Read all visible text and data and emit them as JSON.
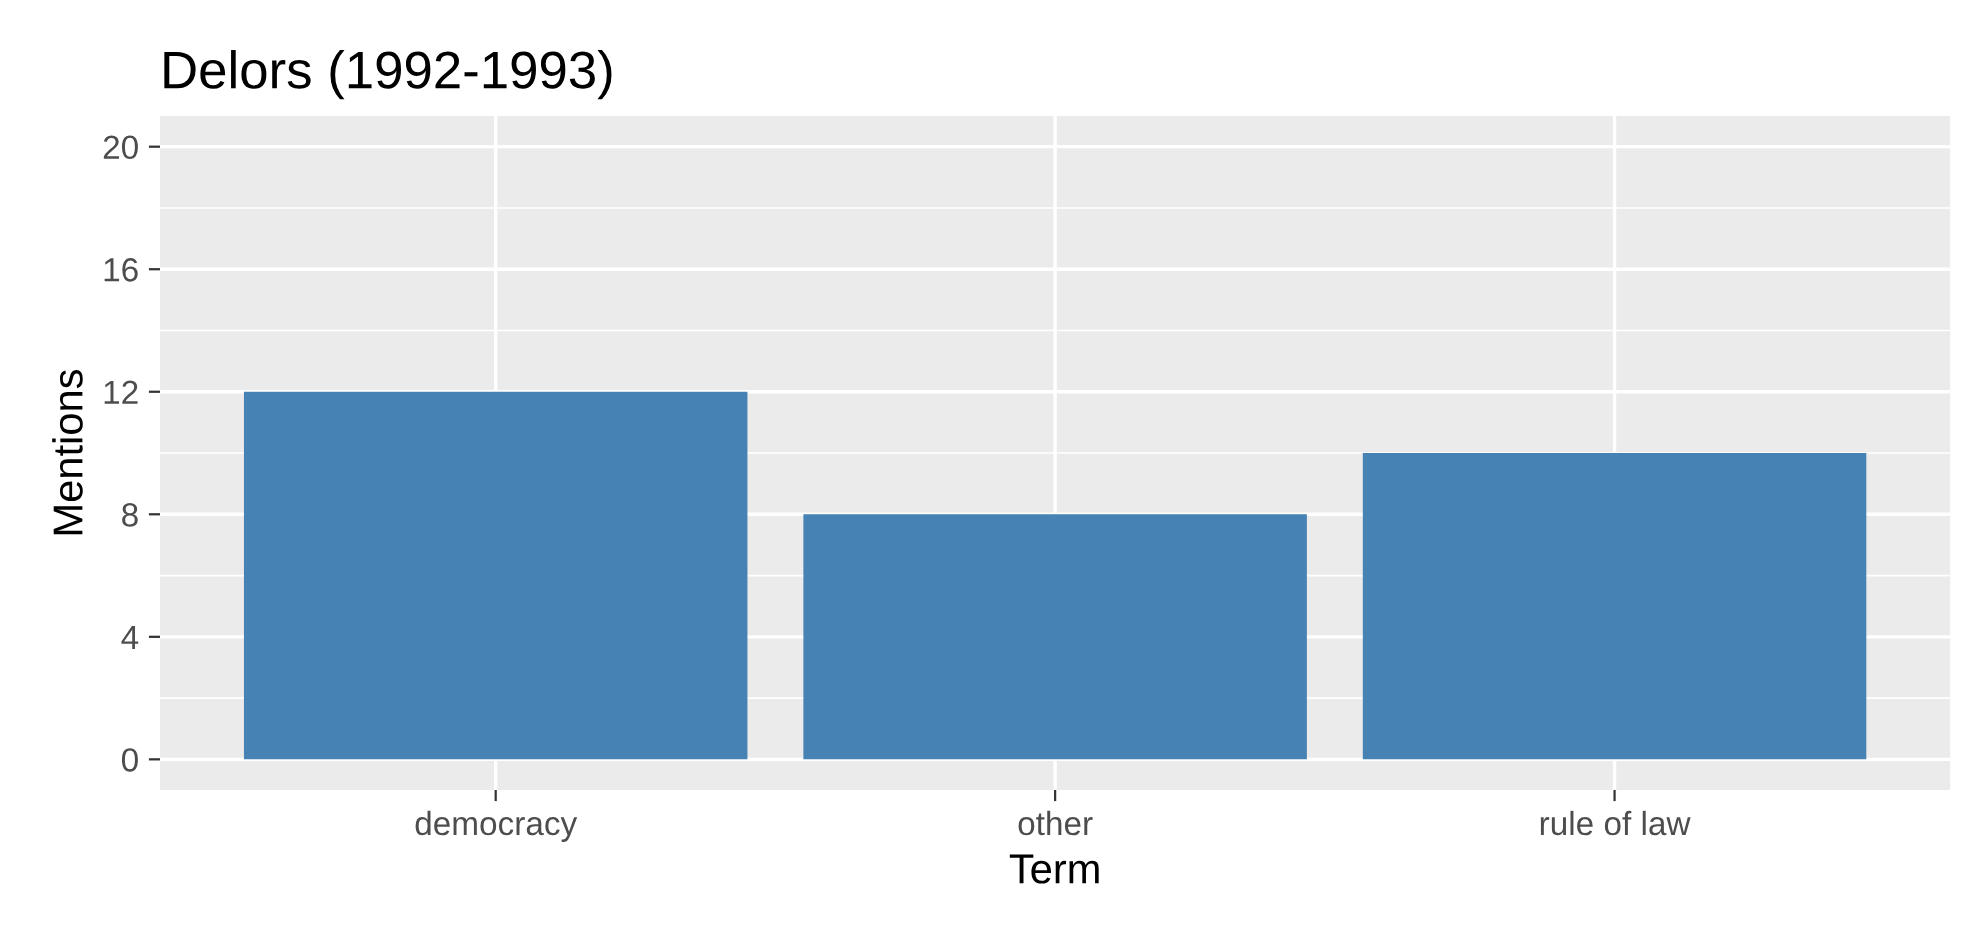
{
  "chart_data": {
    "type": "bar",
    "title": "Delors (1992-1993)",
    "xlabel": "Term",
    "ylabel": "Mentions",
    "categories": [
      "democracy",
      "other",
      "rule of law"
    ],
    "values": [
      12,
      8,
      10
    ],
    "color": "#4682b4",
    "ylim": [
      -1,
      21
    ],
    "yticks": [
      0,
      4,
      8,
      12,
      16,
      20
    ],
    "grid": true
  }
}
